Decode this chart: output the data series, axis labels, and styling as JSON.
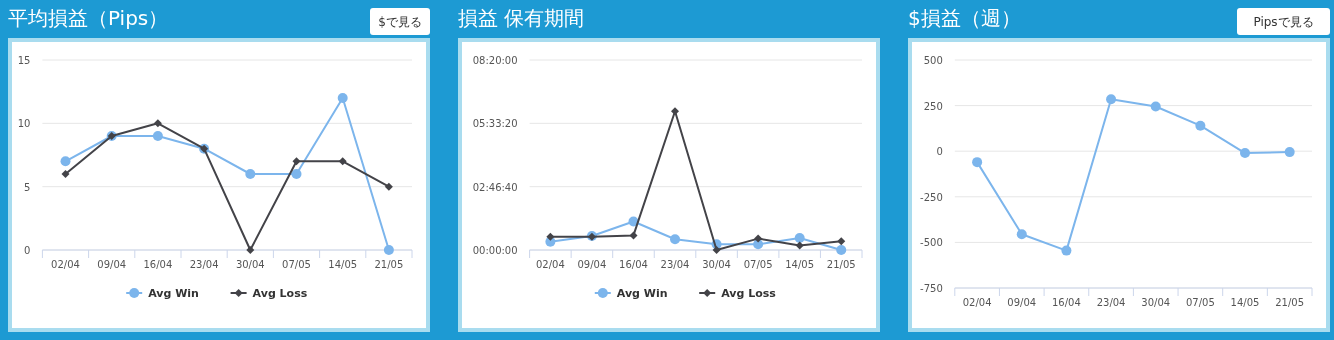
{
  "chart_data": [
    {
      "type": "line",
      "title": "平均損益（Pips）",
      "annotations": [
        "$で見る"
      ],
      "categories": [
        "02/04",
        "09/04",
        "16/04",
        "23/04",
        "30/04",
        "07/05",
        "14/05",
        "21/05"
      ],
      "series": [
        {
          "name": "Avg Win",
          "color": "#7cb5ec",
          "marker": "circle",
          "values": [
            7,
            9,
            9,
            8,
            6,
            6,
            12,
            0
          ]
        },
        {
          "name": "Avg Loss",
          "color": "#434348",
          "marker": "diamond",
          "values": [
            6,
            9,
            10,
            8,
            0,
            7,
            7,
            5
          ]
        }
      ],
      "ylim": [
        0,
        15
      ],
      "yticks": [
        0,
        5,
        10,
        15
      ],
      "grid": "y",
      "legend": "bottom"
    },
    {
      "type": "line",
      "title": "損益 保有期間",
      "categories": [
        "02/04",
        "09/04",
        "16/04",
        "23/04",
        "30/04",
        "07/05",
        "14/05",
        "21/05"
      ],
      "series": [
        {
          "name": "Avg Win",
          "color": "#7cb5ec",
          "marker": "circle",
          "values": [
            1300,
            2200,
            4500,
            1700,
            900,
            900,
            1900,
            0
          ]
        },
        {
          "name": "Avg Loss",
          "color": "#434348",
          "marker": "diamond",
          "values": [
            2100,
            2100,
            2300,
            21900,
            0,
            1800,
            700,
            1400
          ]
        }
      ],
      "ylim": [
        0,
        30000
      ],
      "yticks": [
        {
          "value": 0,
          "label": "00:00:00"
        },
        {
          "value": 10000,
          "label": "02:46:40"
        },
        {
          "value": 20000,
          "label": "05:33:20"
        },
        {
          "value": 30000,
          "label": "08:20:00"
        }
      ],
      "grid": "y",
      "legend": "bottom"
    },
    {
      "type": "line",
      "title": "$損益（週）",
      "annotations": [
        "Pipsで見る"
      ],
      "categories": [
        "02/04",
        "09/04",
        "16/04",
        "23/04",
        "30/04",
        "07/05",
        "14/05",
        "21/05"
      ],
      "series": [
        {
          "color": "#7cb5ec",
          "marker": "circle",
          "values": [
            -60,
            -455,
            -545,
            285,
            245,
            140,
            -10,
            -5
          ]
        }
      ],
      "ylim": [
        -750,
        500
      ],
      "yticks": [
        -750,
        -500,
        -250,
        0,
        250,
        500
      ],
      "grid": "y"
    }
  ]
}
